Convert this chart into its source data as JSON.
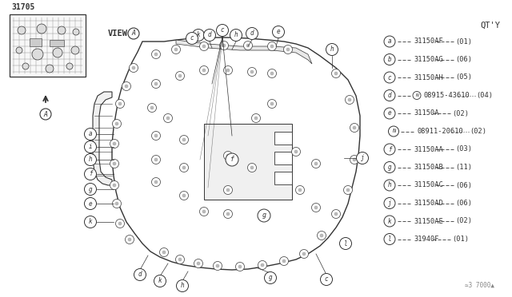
{
  "bg_color": "#f0eeec",
  "dark": "#333333",
  "gray": "#888888",
  "light_gray": "#cccccc",
  "qty_label": "QT’Y",
  "title_part": "31705",
  "view_label": "VIEW",
  "footer": "≃3 7000▲",
  "legend_items": [
    {
      "letter": "a",
      "part": "31150AF",
      "qty": "≨01☉",
      "type": "normal"
    },
    {
      "letter": "b",
      "part": "31150AG",
      "qty": "≨06☉",
      "type": "normal"
    },
    {
      "letter": "c",
      "part": "31150AH",
      "qty": "≨05☉",
      "type": "normal"
    },
    {
      "letter": "d",
      "part": "08915-43610",
      "qty": "≨04☉",
      "type": "N_circle"
    },
    {
      "letter": "e",
      "part": "31150A",
      "qty": "≨02☉",
      "type": "normal"
    },
    {
      "letter": "N",
      "part": "08911-20610",
      "qty": "≨02☉",
      "type": "N_sub"
    },
    {
      "letter": "f",
      "part": "31150AA",
      "qty": "≨03☉",
      "type": "normal"
    },
    {
      "letter": "g",
      "part": "31150AB",
      "qty": "≨11☉",
      "type": "normal"
    },
    {
      "letter": "h",
      "part": "31150AC",
      "qty": "≨06☉",
      "type": "normal"
    },
    {
      "letter": "j",
      "part": "31150AD",
      "qty": "≨06☉",
      "type": "normal"
    },
    {
      "letter": "k",
      "part": "31150AE",
      "qty": "≨02☉",
      "type": "normal"
    },
    {
      "letter": "l",
      "part": "31940F",
      "qty": "≨01☉",
      "type": "normal"
    }
  ]
}
